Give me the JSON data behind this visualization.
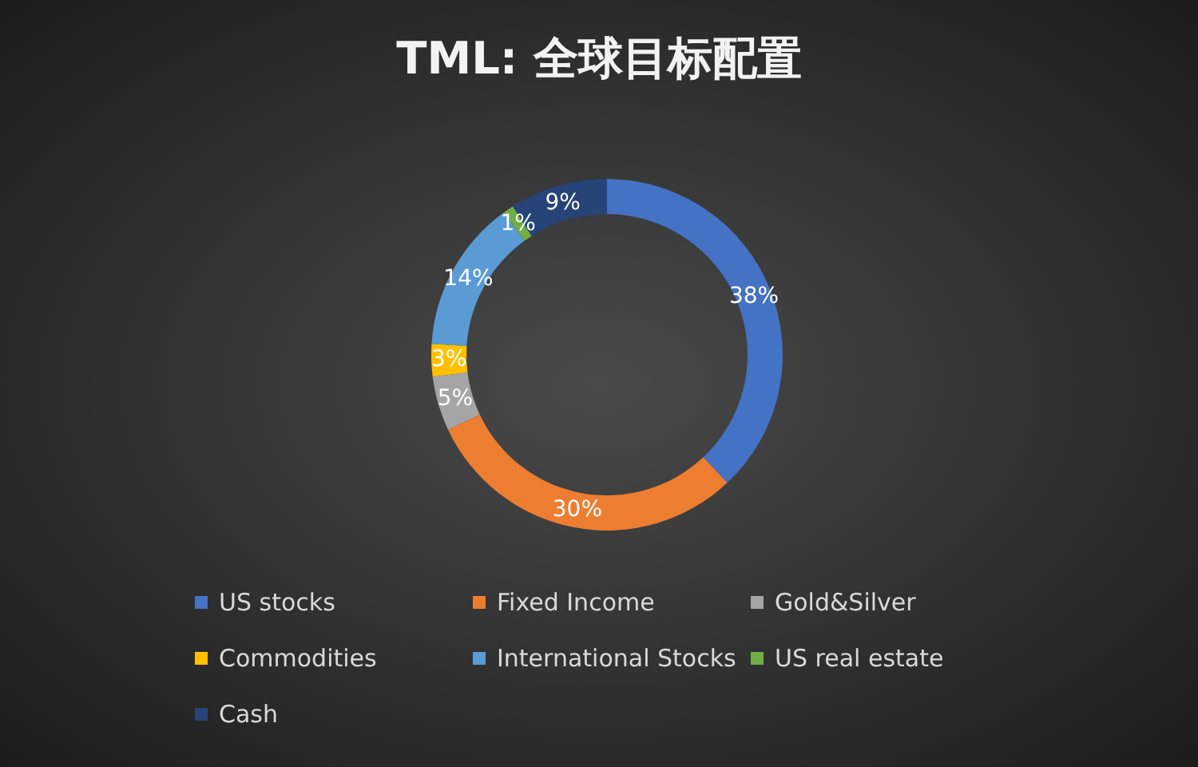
{
  "chart_data": {
    "type": "donut",
    "title": "TML: 全球目标配置",
    "categories": [
      "US stocks",
      "Fixed Income",
      "Gold&Silver",
      "Commodities",
      "International Stocks",
      "US real estate",
      "Cash"
    ],
    "values": [
      38,
      30,
      5,
      3,
      14,
      1,
      9
    ],
    "colors": [
      "#4472c4",
      "#ed7d31",
      "#a5a5a5",
      "#ffc000",
      "#5b9bd5",
      "#70ad47",
      "#264478"
    ],
    "value_labels": [
      "38%",
      "30%",
      "5%",
      "3%",
      "14%",
      "1%",
      "9%"
    ],
    "legend": "bottom"
  }
}
